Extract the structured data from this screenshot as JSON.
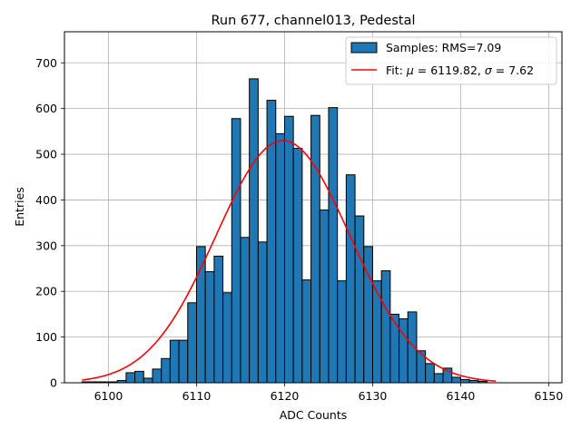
{
  "chart_data": {
    "type": "bar",
    "title": "Run 677, channel013, Pedestal",
    "xlabel": "ADC Counts",
    "ylabel": "Entries",
    "xlim": [
      6095,
      6151.5
    ],
    "ylim": [
      0,
      768
    ],
    "xticks": [
      6100,
      6110,
      6120,
      6130,
      6140,
      6150
    ],
    "yticks": [
      0,
      100,
      200,
      300,
      400,
      500,
      600,
      700
    ],
    "grid": true,
    "legend_position": "top-right",
    "bin_width": 1,
    "bin_start": 6097,
    "histogram": {
      "name": "Samples: RMS=7.09",
      "color": "#1f77b4",
      "edge_color": "#000000",
      "values": [
        2,
        2,
        2,
        2,
        5,
        22,
        25,
        10,
        30,
        53,
        93,
        93,
        175,
        298,
        243,
        277,
        197,
        578,
        318,
        665,
        308,
        618,
        545,
        583,
        513,
        225,
        585,
        378,
        602,
        223,
        455,
        365,
        298,
        223,
        245,
        150,
        140,
        155,
        70,
        42,
        20,
        32,
        12,
        7,
        5,
        3,
        0,
        0,
        0,
        0,
        0,
        0
      ]
    },
    "fit": {
      "name_prefix": "Fit: ",
      "name_mu": "μ",
      "name_mid": " = 6119.82, ",
      "name_sigma": "σ",
      "name_end": " = 7.62",
      "color": "#ff0000",
      "x_range": [
        6097,
        6144
      ],
      "mu": 6119.82,
      "sigma": 7.62,
      "amplitude": 530
    }
  }
}
